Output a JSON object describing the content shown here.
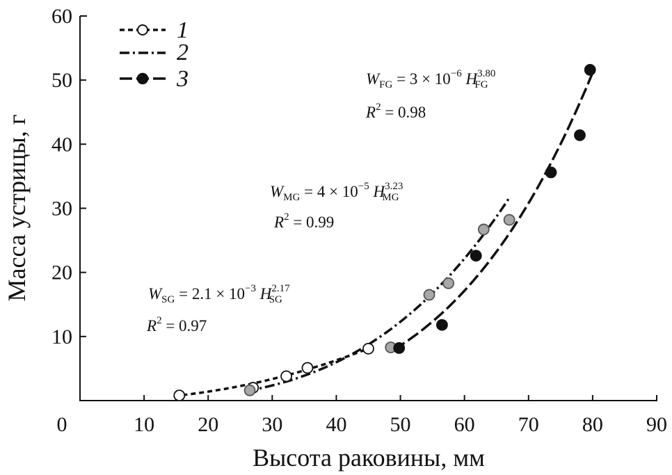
{
  "chart_data": {
    "type": "scatter",
    "title": "",
    "xlabel": "Высота раковины, мм",
    "ylabel": "Масса устрицы, г",
    "xlim": [
      0,
      90
    ],
    "ylim": [
      0,
      60
    ],
    "x_ticks": [
      "0",
      "10",
      "20",
      "30",
      "40",
      "50",
      "60",
      "70",
      "80",
      "90"
    ],
    "y_ticks": [
      "10",
      "20",
      "30",
      "40",
      "50",
      "60"
    ],
    "legend_position": "top-left",
    "series": [
      {
        "name": "1",
        "marker": "open-circle",
        "line_style": "short-dash",
        "marker_color": "#ffffff",
        "points": [
          [
            15.5,
            0.8
          ],
          [
            27.0,
            2.0
          ],
          [
            32.2,
            3.8
          ],
          [
            35.5,
            5.1
          ],
          [
            45.0,
            8.1
          ]
        ]
      },
      {
        "name": "2",
        "marker": "gray-circle",
        "line_style": "dash-dot",
        "marker_color": "#a8a8a8",
        "points": [
          [
            26.5,
            1.6
          ],
          [
            48.5,
            8.3
          ],
          [
            54.5,
            16.5
          ],
          [
            57.5,
            18.3
          ],
          [
            63.0,
            26.7
          ],
          [
            67.0,
            28.2
          ]
        ]
      },
      {
        "name": "3",
        "marker": "filled-circle",
        "line_style": "long-dash",
        "marker_color": "#111111",
        "points": [
          [
            49.8,
            8.2
          ],
          [
            56.5,
            11.8
          ],
          [
            61.8,
            22.6
          ],
          [
            73.5,
            35.6
          ],
          [
            78.0,
            41.4
          ],
          [
            79.6,
            51.6
          ]
        ]
      }
    ],
    "fit_curves": [
      {
        "series": "1",
        "a": 0.0021,
        "b": 2.17,
        "x_range": [
          16,
          46
        ]
      },
      {
        "series": "2",
        "a": 4e-05,
        "b": 3.23,
        "x_range": [
          26,
          67
        ]
      },
      {
        "series": "3",
        "a": 3e-06,
        "b": 3.8,
        "x_range": [
          49,
          80
        ]
      }
    ],
    "annotations": {
      "fg": {
        "w": "W",
        "w_sub": "FG",
        "rhs": " = 3 × 10",
        "exp": "−6",
        "h": " H",
        "h_sup": "3.80",
        "h_sub": "FG",
        "r": "R",
        "r_sup": "2",
        "r_val": " = 0.98"
      },
      "mg": {
        "w": "W",
        "w_sub": "MG",
        "rhs": " = 4 × 10",
        "exp": "−5",
        "h": " H",
        "h_sup": "3.23",
        "h_sub": "MG",
        "r": "R",
        "r_sup": "2",
        "r_val": " = 0.99"
      },
      "sg": {
        "w": "W",
        "w_sub": "SG",
        "rhs": " = 2.1 × 10",
        "exp": "−3",
        "h": " H",
        "h_sup": "2.17",
        "h_sub": "SG",
        "r": "R",
        "r_sup": "2",
        "r_val": " = 0.97"
      }
    }
  }
}
